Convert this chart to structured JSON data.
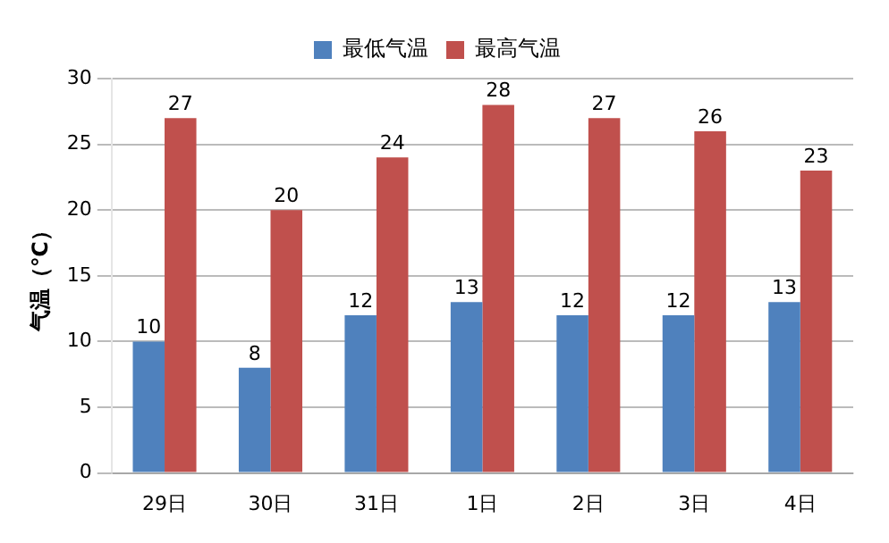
{
  "chart_data": {
    "type": "bar",
    "ylabel": "气温（℃）",
    "categories": [
      "29日",
      "30日",
      "31日",
      "1日",
      "2日",
      "3日",
      "4日"
    ],
    "series": [
      {
        "name": "最低气温",
        "color": "#4f81bd",
        "values": [
          10,
          8,
          12,
          13,
          12,
          12,
          13
        ]
      },
      {
        "name": "最高气温",
        "color": "#c0504d",
        "values": [
          27,
          20,
          24,
          28,
          27,
          26,
          23
        ]
      }
    ],
    "ylim": [
      0,
      30
    ],
    "yticks": [
      0,
      5,
      10,
      15,
      20,
      25,
      30
    ],
    "grid": "y",
    "legend": "top",
    "data_labels": true
  }
}
